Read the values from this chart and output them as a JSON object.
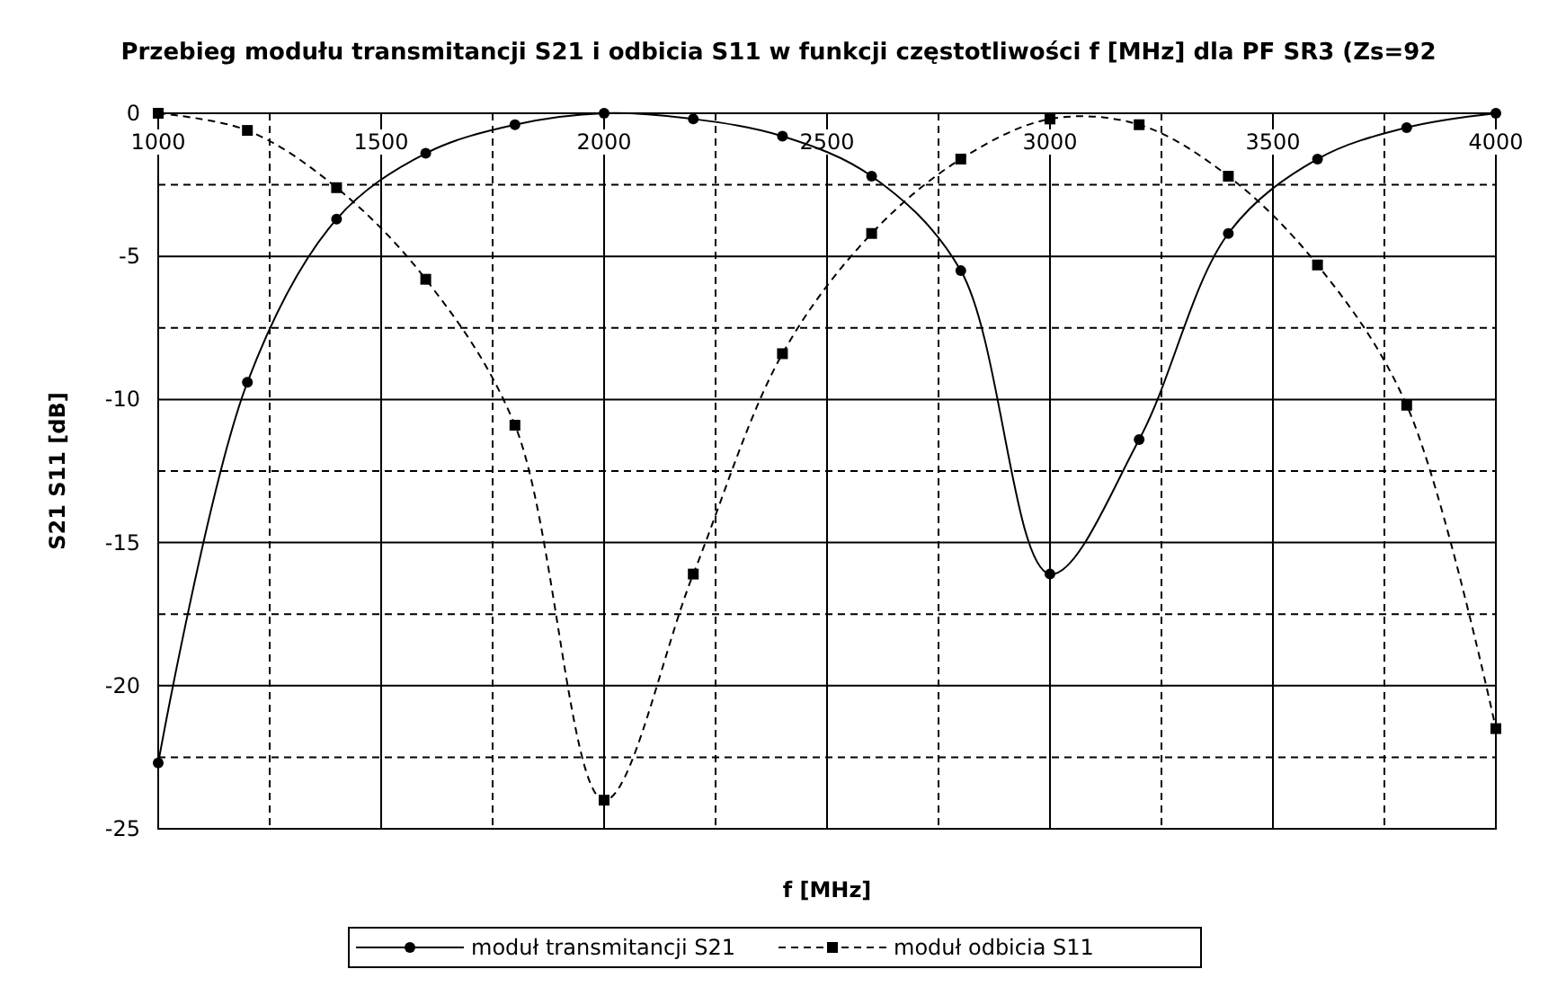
{
  "chart_data": {
    "type": "line",
    "title": "Przebieg modułu transmitancji S21 i odbicia S11 w funkcji częstotliwości f [MHz] dla PF SR3 (Zs=92",
    "xlabel": "f [MHz]",
    "ylabel": "S21  S11 [dB]",
    "x": [
      1000,
      1200,
      1400,
      1600,
      1800,
      2000,
      2200,
      2400,
      2600,
      2800,
      3000,
      3200,
      3400,
      3600,
      3800,
      4000
    ],
    "series": [
      {
        "name": "moduł transmitancji S21",
        "color": "#000000",
        "marker": "circle",
        "line_style": "solid",
        "values": [
          -22.7,
          -9.4,
          -3.7,
          -1.4,
          -0.4,
          0,
          -0.2,
          -0.8,
          -2.2,
          -5.5,
          -16.1,
          -11.4,
          -4.2,
          -1.6,
          -0.5,
          0
        ]
      },
      {
        "name": "moduł odbicia S11",
        "color": "#000000",
        "marker": "square",
        "line_style": "dashed",
        "values": [
          0,
          -0.6,
          -2.6,
          -5.8,
          -10.9,
          -24,
          -16.1,
          -8.4,
          -4.2,
          -1.6,
          -0.2,
          -0.4,
          -2.2,
          -5.3,
          -10.2,
          -21.5
        ]
      }
    ],
    "xlim": [
      1000,
      4000
    ],
    "xticks": [
      1000,
      {
        "value": 1250,
        "label": null
      },
      1500,
      {
        "value": 1750,
        "label": null
      },
      2000,
      {
        "value": 2250,
        "label": null
      },
      2500,
      {
        "value": 2750,
        "label": null
      },
      3000,
      {
        "value": 3250,
        "label": null
      },
      3500,
      {
        "value": 3750,
        "label": null
      },
      4000
    ],
    "ylim": [
      -25,
      0
    ],
    "yticks": [
      -25,
      {
        "value": -22.5,
        "label": null
      },
      -20,
      {
        "value": -17.5,
        "label": null
      },
      -15,
      {
        "value": -12.5,
        "label": null
      },
      -10,
      {
        "value": -7.5,
        "label": null
      },
      -5,
      {
        "value": -2.5,
        "label": null
      },
      0
    ],
    "grid": true,
    "legend": "bottom"
  }
}
